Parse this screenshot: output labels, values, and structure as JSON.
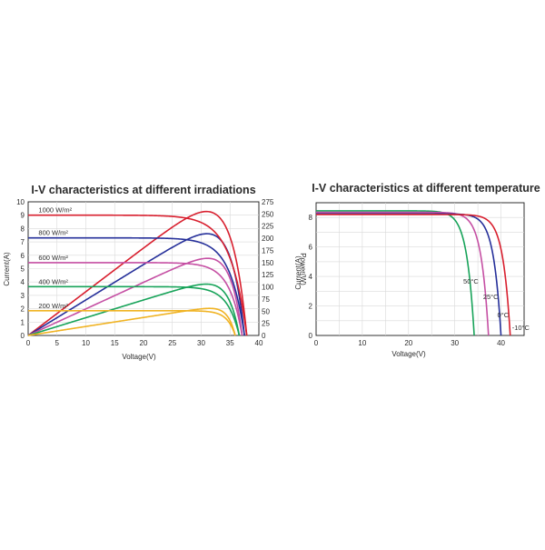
{
  "chart_data": [
    {
      "type": "line",
      "title": "I-V characteristics at different irradiations",
      "xlabel": "Voltage(V)",
      "ylabel": "Current(A)",
      "ylabel_right": "Power(W)",
      "xlim": [
        0,
        40
      ],
      "ylim": [
        0,
        10
      ],
      "ylim_right": [
        0,
        275
      ],
      "x_ticks": [
        0,
        5,
        10,
        15,
        20,
        25,
        30,
        35,
        40
      ],
      "y_ticks": [
        0,
        1,
        2,
        3,
        4,
        5,
        6,
        7,
        8,
        9,
        10
      ],
      "y_ticks_right": [
        0,
        25,
        50,
        75,
        100,
        125,
        150,
        175,
        200,
        225,
        250,
        275
      ],
      "grid": true,
      "series": [
        {
          "name": "1000 W/m²",
          "color": "#d81f2e",
          "isc": 9.0,
          "voc": 37.9,
          "vmp": 31.0,
          "imp": 8.22,
          "pmax": 255
        },
        {
          "name": "800 W/m²",
          "color": "#26309a",
          "isc": 7.3,
          "voc": 37.5,
          "vmp": 30.5,
          "imp": 6.85,
          "pmax": 209
        },
        {
          "name": "600 W/m²",
          "color": "#c54fa3",
          "isc": 5.45,
          "voc": 37.1,
          "vmp": 30.3,
          "imp": 5.2,
          "pmax": 158
        },
        {
          "name": "400 W/m²",
          "color": "#17a359",
          "isc": 3.65,
          "voc": 36.6,
          "vmp": 30.0,
          "imp": 3.5,
          "pmax": 105
        },
        {
          "name": "200 W/m²",
          "color": "#f0b323",
          "isc": 1.85,
          "voc": 35.9,
          "vmp": 29.5,
          "imp": 1.83,
          "pmax": 54
        }
      ]
    },
    {
      "type": "line",
      "title": "I-V characteristics at different temperature",
      "xlabel": "Voltage(V)",
      "ylabel": "Current(A)",
      "xlim": [
        0,
        45
      ],
      "ylim": [
        0,
        9
      ],
      "x_ticks": [
        0,
        10,
        20,
        30,
        40
      ],
      "y_ticks": [
        0,
        2,
        4,
        6,
        8
      ],
      "grid": true,
      "series": [
        {
          "name": "50°C",
          "color": "#17a359",
          "isc": 8.45,
          "voc": 34.2
        },
        {
          "name": "25°C",
          "color": "#c54fa3",
          "isc": 8.35,
          "voc": 37.3
        },
        {
          "name": "0°C",
          "color": "#26309a",
          "isc": 8.25,
          "voc": 40.0
        },
        {
          "name": "-10°C",
          "color": "#d81f2e",
          "isc": 8.2,
          "voc": 42.0
        }
      ]
    }
  ]
}
